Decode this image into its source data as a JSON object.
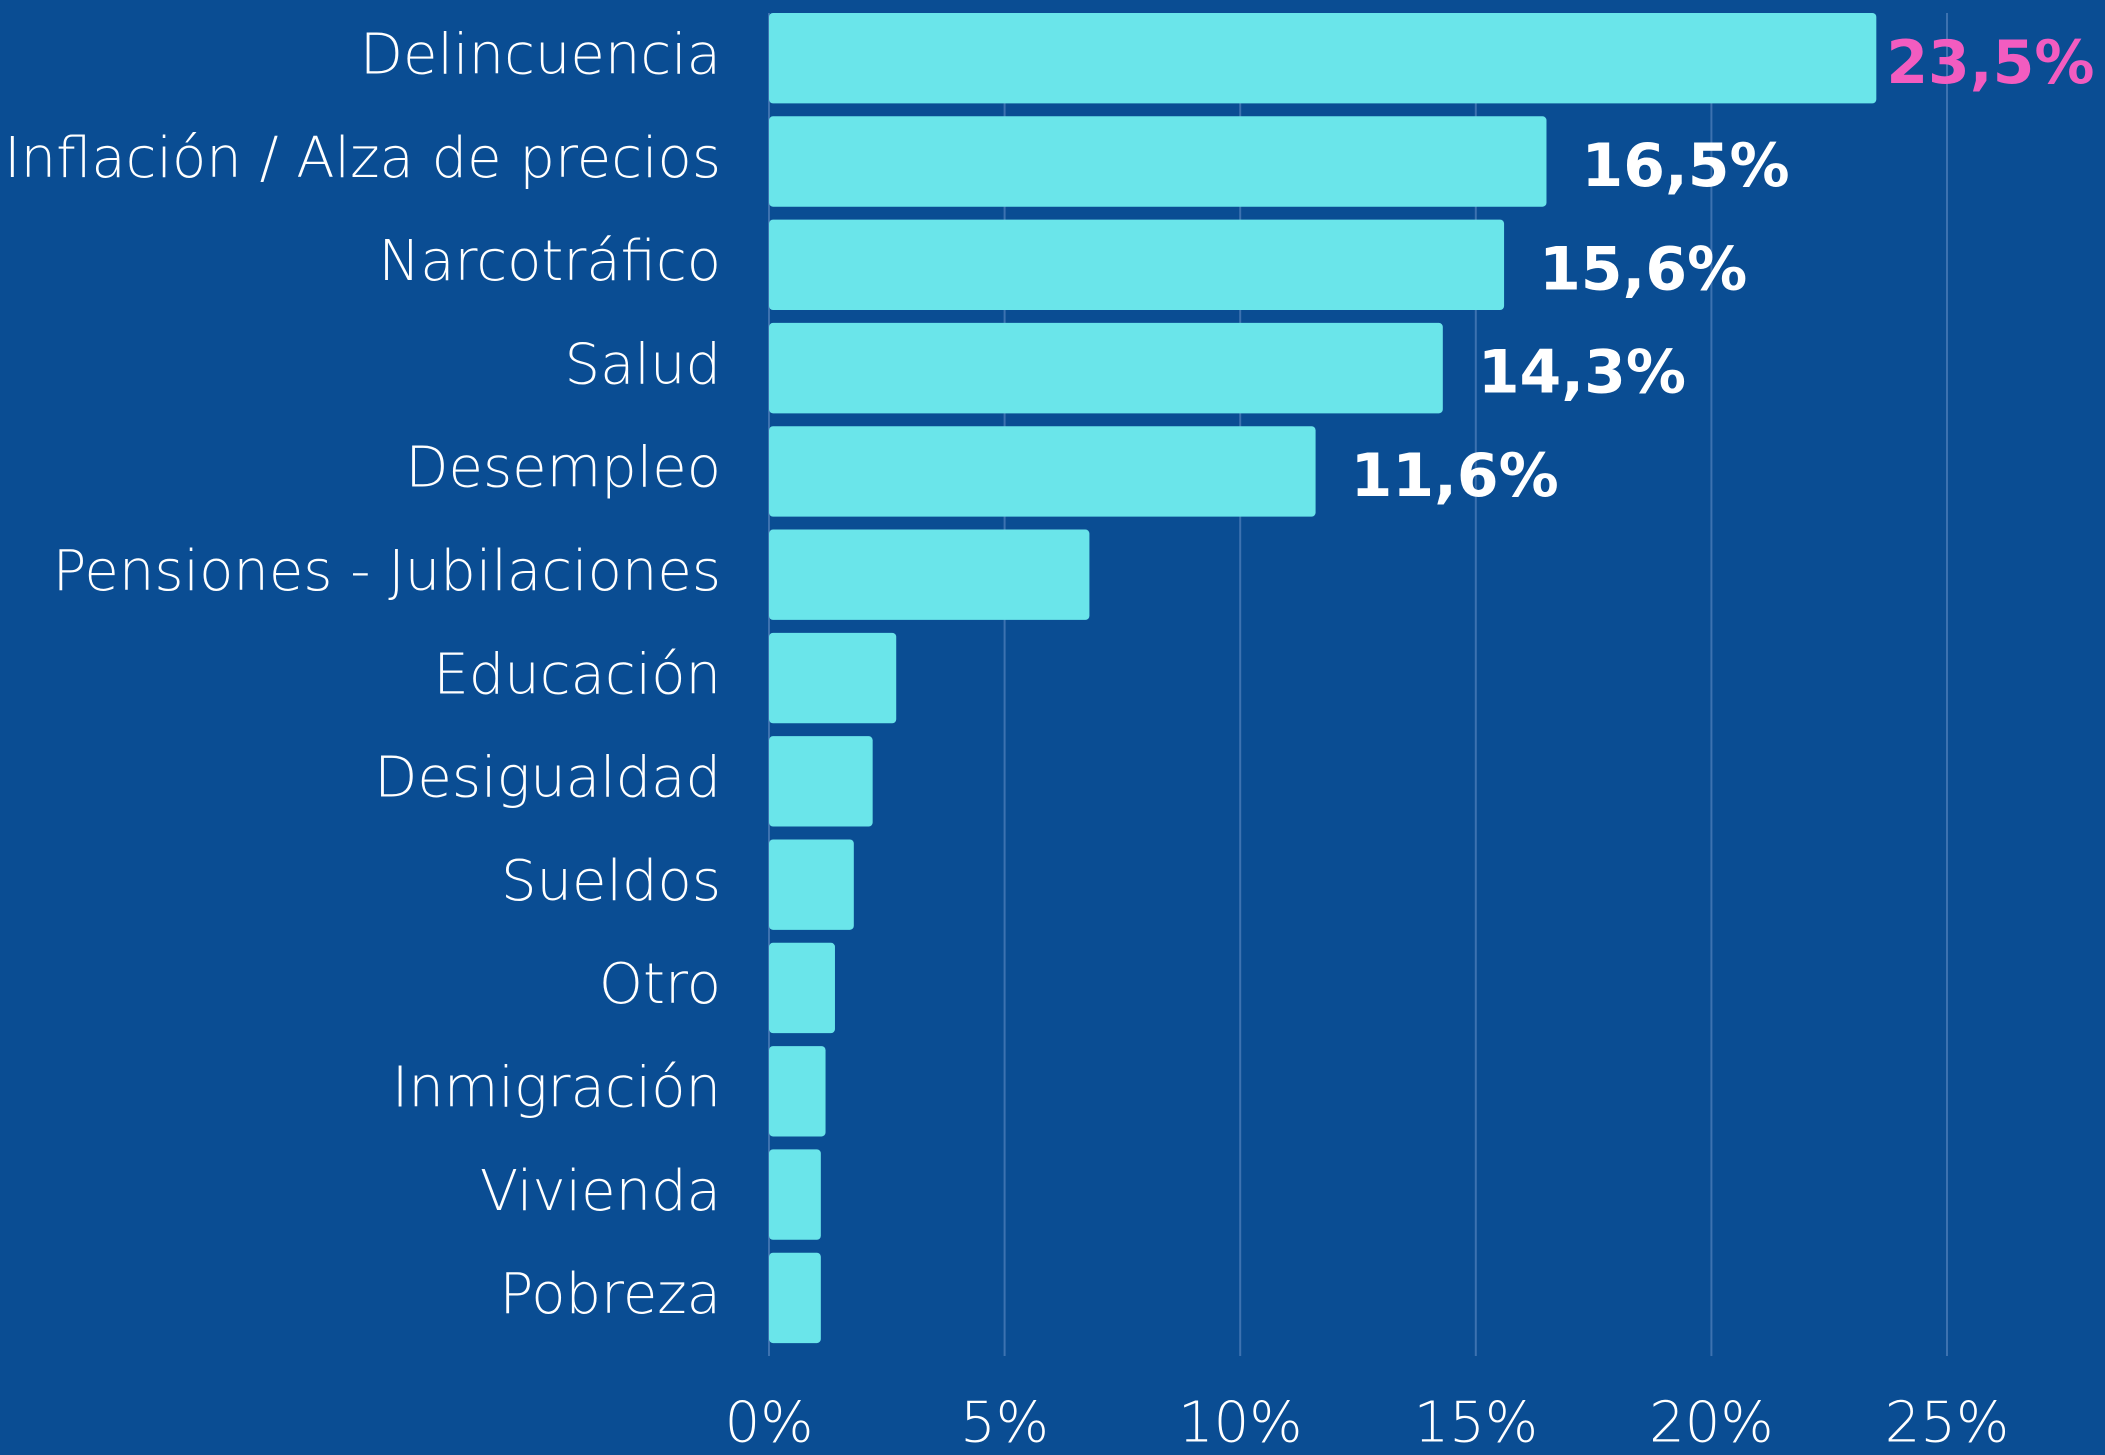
{
  "chart_data": {
    "type": "hbar",
    "categories": [
      "Delincuencia",
      "Inflación / Alza de precios",
      "Narcotráfico",
      "Salud",
      "Desempleo",
      "Pensiones - Jubilaciones",
      "Educación",
      "Desigualdad",
      "Sueldos",
      "Otro",
      "Inmigración",
      "Vivienda",
      "Pobreza"
    ],
    "values": [
      23.5,
      16.5,
      15.6,
      14.3,
      11.6,
      6.8,
      2.7,
      2.2,
      1.8,
      1.4,
      1.2,
      1.1,
      1.1
    ],
    "value_labels": [
      "23,5%",
      "16,5%",
      "15,6%",
      "14,3%",
      "11,6%",
      null,
      null,
      null,
      null,
      null,
      null,
      null,
      null
    ],
    "color": "#6ae5ea",
    "label_color": "#ffffff",
    "highlight_color": "#f25cc0",
    "xlim": [
      0,
      25
    ],
    "xticks": [
      {
        "value": 0,
        "label": "0%"
      },
      {
        "value": 5,
        "label": "5%"
      },
      {
        "value": 10,
        "label": "10%"
      },
      {
        "value": 15,
        "label": "15%"
      },
      {
        "value": 20,
        "label": "20%"
      },
      {
        "value": 25,
        "label": "25%"
      }
    ],
    "grid": true
  }
}
